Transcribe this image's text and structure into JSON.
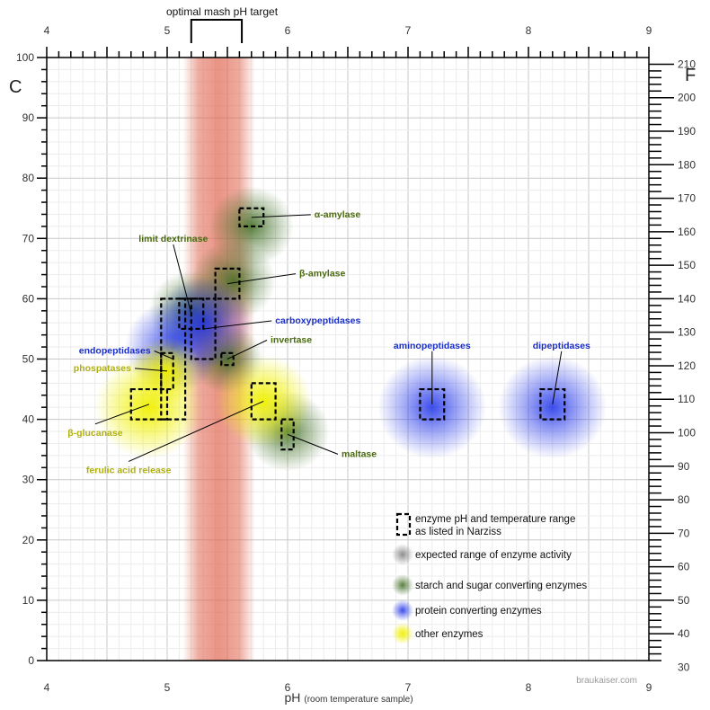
{
  "chart_data": {
    "type": "scatter",
    "title": "optimal mash pH target",
    "xlabel": "pH",
    "xlabel_note": "(room temperature sample)",
    "ylabel_left": "C",
    "ylabel_right": "F",
    "xlim": [
      4,
      9
    ],
    "ylim_c": [
      0,
      100
    ],
    "ylim_f": [
      30,
      210
    ],
    "xticks": [
      "4",
      "5",
      "6",
      "7",
      "8",
      "9"
    ],
    "yticks_c": [
      "0",
      "10",
      "20",
      "30",
      "40",
      "50",
      "60",
      "70",
      "80",
      "90",
      "100"
    ],
    "yticks_f": [
      "30",
      "40",
      "50",
      "60",
      "70",
      "80",
      "90",
      "100",
      "110",
      "120",
      "130",
      "140",
      "150",
      "160",
      "170",
      "180",
      "190",
      "200",
      "210"
    ],
    "grid": true,
    "optimal_ph_band": [
      5.2,
      5.6
    ],
    "categories": {
      "starch": {
        "name": "starch and sugar converting enzymes",
        "color": "#3a6a1e",
        "label_color": "#4a6a10"
      },
      "protein": {
        "name": "protein converting enzymes",
        "color": "#1a2ee8",
        "label_color": "#1a2ec8"
      },
      "other": {
        "name": "other enzymes",
        "color": "#f0f000",
        "label_color": "#b0b010"
      }
    },
    "enzymes": [
      {
        "name": "α-amylase",
        "category": "starch",
        "ph": [
          5.6,
          5.8
        ],
        "temp_c": [
          72,
          75
        ],
        "activity_center": [
          5.7,
          72
        ],
        "activity_radius_ph": 0.35
      },
      {
        "name": "β-amylase",
        "category": "starch",
        "ph": [
          5.4,
          5.6
        ],
        "temp_c": [
          60,
          65
        ],
        "activity_center": [
          5.55,
          63
        ],
        "activity_radius_ph": 0.35
      },
      {
        "name": "limit dextrinase",
        "category": "starch",
        "ph": [
          5.1,
          5.3
        ],
        "temp_c": [
          55,
          60
        ],
        "activity_center": [
          5.2,
          58
        ],
        "activity_radius_ph": 0.35
      },
      {
        "name": "invertase",
        "category": "starch",
        "ph": [
          5.45,
          5.55
        ],
        "temp_c": [
          49,
          51
        ],
        "activity_center": [
          5.5,
          50
        ],
        "activity_radius_ph": 0.3
      },
      {
        "name": "maltase",
        "category": "starch",
        "ph": [
          5.95,
          6.05
        ],
        "temp_c": [
          35,
          40
        ],
        "activity_center": [
          6.0,
          38
        ],
        "activity_radius_ph": 0.35
      },
      {
        "name": "carboxypeptidases",
        "category": "protein",
        "ph": [
          5.2,
          5.4
        ],
        "temp_c": [
          50,
          60
        ],
        "activity_center": [
          5.3,
          56
        ],
        "activity_radius_ph": 0.4
      },
      {
        "name": "endopeptidases",
        "category": "protein",
        "ph": [
          4.95,
          5.15
        ],
        "temp_c": [
          40,
          60
        ],
        "activity_center": [
          5.05,
          52
        ],
        "activity_radius_ph": 0.4
      },
      {
        "name": "aminopeptidases",
        "category": "protein",
        "ph": [
          7.1,
          7.3
        ],
        "temp_c": [
          40,
          45
        ],
        "activity_center": [
          7.2,
          42
        ],
        "activity_radius_ph": 0.45
      },
      {
        "name": "dipeptidases",
        "category": "protein",
        "ph": [
          8.1,
          8.3
        ],
        "temp_c": [
          40,
          45
        ],
        "activity_center": [
          8.2,
          42
        ],
        "activity_radius_ph": 0.45
      },
      {
        "name": "phospatases",
        "category": "other",
        "ph": [
          4.95,
          5.05
        ],
        "temp_c": [
          45,
          51
        ],
        "activity_center": [
          5.0,
          48
        ],
        "activity_radius_ph": 0.3
      },
      {
        "name": "β-glucanase",
        "category": "other",
        "ph": [
          4.7,
          5.0
        ],
        "temp_c": [
          40,
          45
        ],
        "activity_center": [
          4.85,
          42
        ],
        "activity_radius_ph": 0.45
      },
      {
        "name": "ferulic acid release",
        "category": "other",
        "ph": [
          5.7,
          5.9
        ],
        "temp_c": [
          40,
          46
        ],
        "activity_center": [
          5.8,
          43
        ],
        "activity_radius_ph": 0.4
      }
    ],
    "legend": {
      "range_line1": "enzyme pH and temperature range",
      "range_line2": "as listed in Narziss",
      "expected": "expected range of enzyme activity",
      "starch": "starch and sugar converting enzymes",
      "protein": "protein converting enzymes",
      "other": "other enzymes"
    },
    "credit": "braukaiser.com"
  }
}
